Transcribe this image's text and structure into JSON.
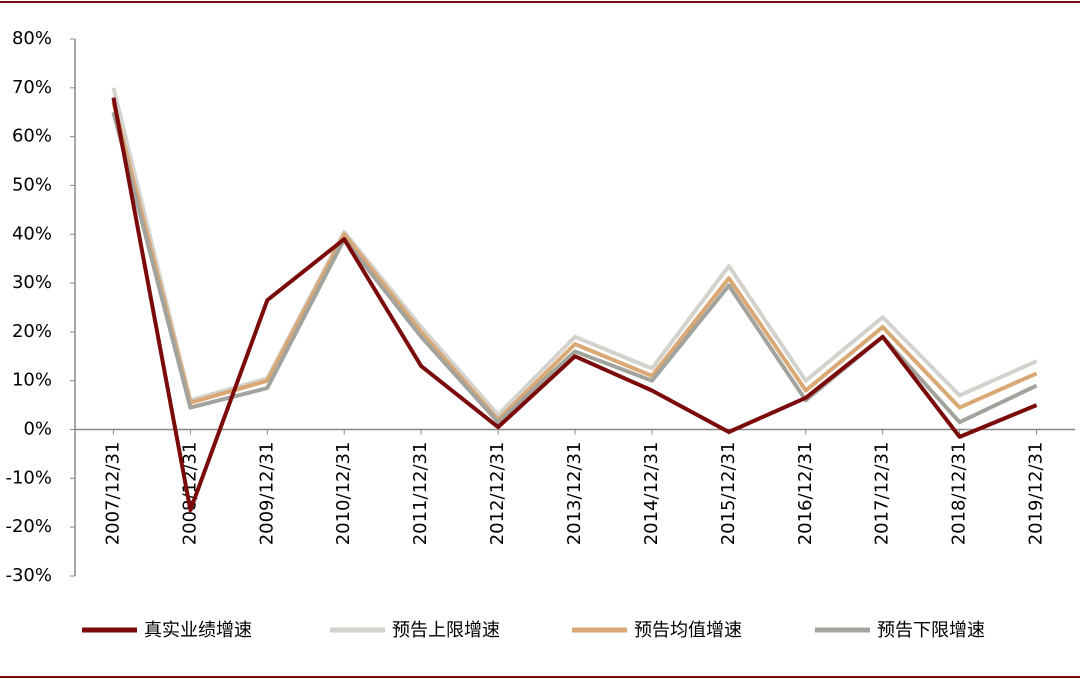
{
  "chart_data": {
    "type": "line",
    "categories": [
      "2007/12/31",
      "2008/12/31",
      "2009/12/31",
      "2010/12/31",
      "2011/12/31",
      "2012/12/31",
      "2013/12/31",
      "2014/12/31",
      "2015/12/31",
      "2016/12/31",
      "2017/12/31",
      "2018/12/31",
      "2019/12/31"
    ],
    "series": [
      {
        "name": "真实业绩增速",
        "color": "#7b0a0a",
        "values": [
          68,
          -16.5,
          26.5,
          39,
          13,
          0.5,
          15,
          8,
          -0.5,
          6.5,
          19,
          -1.5,
          5
        ]
      },
      {
        "name": "预告上限增速",
        "color": "#d3d2cc",
        "values": [
          70,
          6,
          10.5,
          40.5,
          21,
          3,
          19,
          12.5,
          33.5,
          10,
          23,
          7,
          14
        ]
      },
      {
        "name": "预告均值增速",
        "color": "#d9a874",
        "values": [
          67,
          5.5,
          10,
          40,
          20,
          2,
          17.5,
          11,
          31,
          8,
          21,
          4.5,
          11.5
        ]
      },
      {
        "name": "预告下限增速",
        "color": "#a3a39d",
        "values": [
          65,
          4.5,
          8.5,
          39,
          19,
          1.5,
          16,
          10,
          29.5,
          6,
          19,
          1.5,
          9
        ]
      }
    ],
    "ylim": [
      -30,
      80
    ],
    "yticks": [
      {
        "value": -30,
        "label": "-30%"
      },
      {
        "value": -20,
        "label": "-20%"
      },
      {
        "value": -10,
        "label": "-10%"
      },
      {
        "value": 0,
        "label": "0%"
      },
      {
        "value": 10,
        "label": "10%"
      },
      {
        "value": 20,
        "label": "20%"
      },
      {
        "value": 30,
        "label": "30%"
      },
      {
        "value": 40,
        "label": "40%"
      },
      {
        "value": 50,
        "label": "50%"
      },
      {
        "value": 60,
        "label": "60%"
      },
      {
        "value": 70,
        "label": "70%"
      },
      {
        "value": 80,
        "label": "80%"
      }
    ]
  }
}
